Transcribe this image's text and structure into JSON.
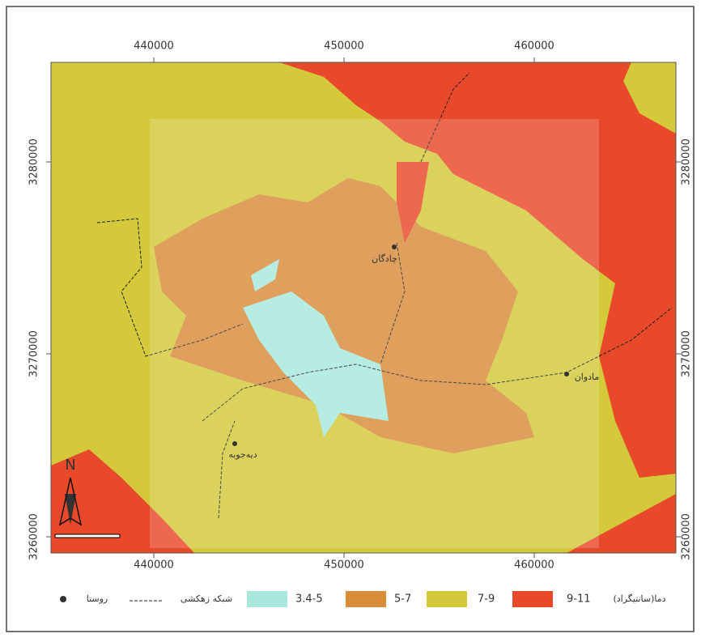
{
  "map": {
    "x_labels_top": [
      "440000",
      "450000",
      "460000"
    ],
    "x_labels_bottom": [
      "440000",
      "450000",
      "460000"
    ],
    "y_labels_left": [
      "3280000",
      "3270000",
      "3260000"
    ],
    "y_labels_right": [
      "3280000",
      "3270000",
      "3260000"
    ],
    "north": "N",
    "places": [
      "چادگان",
      "مادوان",
      "دیه‌جوبه"
    ],
    "legend": {
      "title": "دما(سانتیگراد)",
      "classes": [
        "9-11",
        "7-9",
        "5-7",
        "3.4-5"
      ],
      "drainage": "شبکه زهکشی",
      "village": "روستا"
    }
  }
}
